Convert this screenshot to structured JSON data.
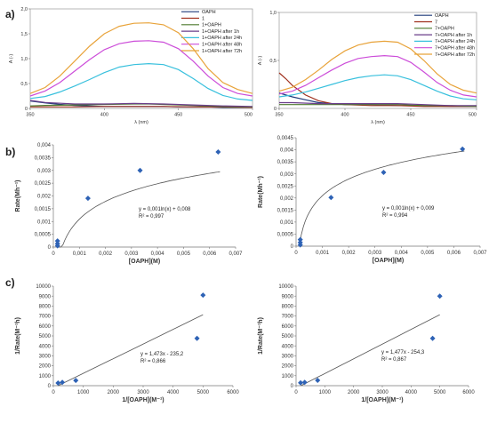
{
  "panel_labels": [
    "a)",
    "b)",
    "c)"
  ],
  "chart_data": [
    {
      "type": "line",
      "panel": "a)",
      "xlabel": "λ (nm)",
      "ylabel": "A (-)",
      "xlim": [
        350,
        500
      ],
      "ylim": [
        0,
        2.0
      ],
      "x_ticks": [
        "350",
        "400",
        "450",
        "500"
      ],
      "y_ticks": [
        "0",
        "0,5",
        "1,0",
        "1,5",
        "2,0"
      ],
      "grid": false,
      "legend_position": "top-right",
      "series": [
        {
          "name": "OAPH",
          "color": "#1f3a7a",
          "points": [
            [
              350,
              0.15
            ],
            [
              360,
              0.11
            ],
            [
              370,
              0.08
            ],
            [
              380,
              0.06
            ],
            [
              390,
              0.05
            ],
            [
              400,
              0.04
            ],
            [
              410,
              0.04
            ],
            [
              420,
              0.04
            ],
            [
              430,
              0.04
            ],
            [
              440,
              0.04
            ],
            [
              450,
              0.03
            ],
            [
              460,
              0.03
            ],
            [
              470,
              0.03
            ],
            [
              480,
              0.02
            ],
            [
              490,
              0.02
            ],
            [
              500,
              0.02
            ]
          ]
        },
        {
          "name": "1",
          "color": "#a0301e",
          "points": [
            [
              350,
              0.03
            ],
            [
              360,
              0.03
            ],
            [
              380,
              0.03
            ],
            [
              400,
              0.04
            ],
            [
              420,
              0.04
            ],
            [
              440,
              0.04
            ],
            [
              460,
              0.03
            ],
            [
              480,
              0.03
            ],
            [
              500,
              0.02
            ]
          ]
        },
        {
          "name": "1+OAPH",
          "color": "#4d7a2e",
          "points": [
            [
              350,
              0.05
            ],
            [
              360,
              0.06
            ],
            [
              380,
              0.07
            ],
            [
              400,
              0.08
            ],
            [
              420,
              0.09
            ],
            [
              430,
              0.09
            ],
            [
              440,
              0.08
            ],
            [
              460,
              0.06
            ],
            [
              480,
              0.04
            ],
            [
              500,
              0.03
            ]
          ]
        },
        {
          "name": "1+OAPH after 1h",
          "color": "#6a3d8a",
          "points": [
            [
              350,
              0.16
            ],
            [
              360,
              0.12
            ],
            [
              380,
              0.09
            ],
            [
              400,
              0.09
            ],
            [
              420,
              0.1
            ],
            [
              440,
              0.09
            ],
            [
              460,
              0.07
            ],
            [
              480,
              0.05
            ],
            [
              500,
              0.04
            ]
          ]
        },
        {
          "name": "1+OAPH after 24h",
          "color": "#38c0dd",
          "points": [
            [
              350,
              0.2
            ],
            [
              360,
              0.24
            ],
            [
              370,
              0.33
            ],
            [
              380,
              0.45
            ],
            [
              390,
              0.58
            ],
            [
              400,
              0.72
            ],
            [
              410,
              0.83
            ],
            [
              420,
              0.88
            ],
            [
              430,
              0.9
            ],
            [
              440,
              0.88
            ],
            [
              450,
              0.78
            ],
            [
              460,
              0.6
            ],
            [
              470,
              0.4
            ],
            [
              480,
              0.26
            ],
            [
              490,
              0.19
            ],
            [
              500,
              0.16
            ]
          ]
        },
        {
          "name": "1+OAPH after 48h",
          "color": "#cc4dd9",
          "points": [
            [
              350,
              0.25
            ],
            [
              360,
              0.35
            ],
            [
              370,
              0.52
            ],
            [
              380,
              0.75
            ],
            [
              390,
              0.98
            ],
            [
              400,
              1.18
            ],
            [
              410,
              1.3
            ],
            [
              420,
              1.35
            ],
            [
              430,
              1.36
            ],
            [
              440,
              1.33
            ],
            [
              450,
              1.2
            ],
            [
              460,
              0.95
            ],
            [
              470,
              0.65
            ],
            [
              480,
              0.42
            ],
            [
              490,
              0.3
            ],
            [
              500,
              0.25
            ]
          ]
        },
        {
          "name": "1+OAPH after 72h",
          "color": "#e8a33a",
          "points": [
            [
              350,
              0.3
            ],
            [
              360,
              0.42
            ],
            [
              370,
              0.65
            ],
            [
              380,
              0.95
            ],
            [
              390,
              1.25
            ],
            [
              400,
              1.5
            ],
            [
              410,
              1.65
            ],
            [
              420,
              1.71
            ],
            [
              430,
              1.72
            ],
            [
              440,
              1.68
            ],
            [
              450,
              1.52
            ],
            [
              460,
              1.2
            ],
            [
              470,
              0.8
            ],
            [
              480,
              0.52
            ],
            [
              490,
              0.38
            ],
            [
              500,
              0.3
            ]
          ]
        }
      ]
    },
    {
      "type": "line",
      "panel": "a)",
      "xlabel": "λ (nm)",
      "ylabel": "A (-)",
      "xlim": [
        350,
        500
      ],
      "ylim": [
        0,
        1.0
      ],
      "x_ticks": [
        "350",
        "400",
        "450",
        "500"
      ],
      "y_ticks": [
        "0",
        "0,5",
        "1,0"
      ],
      "grid": false,
      "legend_position": "top-right",
      "series": [
        {
          "name": "OAPH",
          "color": "#1f3a7a",
          "points": [
            [
              350,
              0.16
            ],
            [
              360,
              0.12
            ],
            [
              370,
              0.09
            ],
            [
              380,
              0.06
            ],
            [
              390,
              0.05
            ],
            [
              400,
              0.04
            ],
            [
              420,
              0.04
            ],
            [
              440,
              0.03
            ],
            [
              460,
              0.03
            ],
            [
              480,
              0.02
            ],
            [
              500,
              0.02
            ]
          ]
        },
        {
          "name": "7",
          "color": "#a0301e",
          "points": [
            [
              350,
              0.37
            ],
            [
              355,
              0.31
            ],
            [
              360,
              0.24
            ],
            [
              370,
              0.14
            ],
            [
              380,
              0.08
            ],
            [
              390,
              0.05
            ],
            [
              400,
              0.04
            ],
            [
              420,
              0.03
            ],
            [
              440,
              0.03
            ],
            [
              460,
              0.02
            ],
            [
              480,
              0.02
            ],
            [
              500,
              0.02
            ]
          ]
        },
        {
          "name": "7+OAPH",
          "color": "#4d7a2e",
          "points": [
            [
              350,
              0.04
            ],
            [
              360,
              0.04
            ],
            [
              380,
              0.04
            ],
            [
              400,
              0.04
            ],
            [
              420,
              0.04
            ],
            [
              440,
              0.04
            ],
            [
              460,
              0.03
            ],
            [
              480,
              0.03
            ],
            [
              500,
              0.02
            ]
          ]
        },
        {
          "name": "7+OAPH after 1h",
          "color": "#6a3d8a",
          "points": [
            [
              350,
              0.06
            ],
            [
              360,
              0.06
            ],
            [
              380,
              0.05
            ],
            [
              400,
              0.05
            ],
            [
              420,
              0.05
            ],
            [
              440,
              0.05
            ],
            [
              460,
              0.04
            ],
            [
              480,
              0.03
            ],
            [
              500,
              0.03
            ]
          ]
        },
        {
          "name": "7+OAPH after 24h",
          "color": "#38c0dd",
          "points": [
            [
              350,
              0.12
            ],
            [
              360,
              0.14
            ],
            [
              370,
              0.17
            ],
            [
              380,
              0.21
            ],
            [
              390,
              0.25
            ],
            [
              400,
              0.29
            ],
            [
              410,
              0.32
            ],
            [
              420,
              0.34
            ],
            [
              430,
              0.35
            ],
            [
              440,
              0.34
            ],
            [
              450,
              0.3
            ],
            [
              460,
              0.24
            ],
            [
              470,
              0.18
            ],
            [
              480,
              0.13
            ],
            [
              490,
              0.1
            ],
            [
              500,
              0.09
            ]
          ]
        },
        {
          "name": "7+OAPH after 48h",
          "color": "#cc4dd9",
          "points": [
            [
              350,
              0.15
            ],
            [
              360,
              0.18
            ],
            [
              370,
              0.24
            ],
            [
              380,
              0.32
            ],
            [
              390,
              0.4
            ],
            [
              400,
              0.47
            ],
            [
              410,
              0.52
            ],
            [
              420,
              0.54
            ],
            [
              430,
              0.55
            ],
            [
              440,
              0.54
            ],
            [
              450,
              0.48
            ],
            [
              460,
              0.38
            ],
            [
              470,
              0.27
            ],
            [
              480,
              0.19
            ],
            [
              490,
              0.14
            ],
            [
              500,
              0.12
            ]
          ]
        },
        {
          "name": "7+OAPH after 72h",
          "color": "#e8a33a",
          "points": [
            [
              350,
              0.18
            ],
            [
              360,
              0.22
            ],
            [
              370,
              0.3
            ],
            [
              380,
              0.4
            ],
            [
              390,
              0.51
            ],
            [
              400,
              0.6
            ],
            [
              410,
              0.66
            ],
            [
              420,
              0.69
            ],
            [
              430,
              0.7
            ],
            [
              440,
              0.69
            ],
            [
              450,
              0.62
            ],
            [
              460,
              0.5
            ],
            [
              470,
              0.36
            ],
            [
              480,
              0.25
            ],
            [
              490,
              0.19
            ],
            [
              500,
              0.16
            ]
          ]
        }
      ]
    },
    {
      "type": "scatter",
      "panel": "b)",
      "xlabel": "[OAPH](M)",
      "ylabel": "Rate(Mh⁻¹)",
      "xlim": [
        0,
        0.007
      ],
      "ylim": [
        0,
        0.004
      ],
      "x_ticks": [
        "0",
        "0,001",
        "0,002",
        "0,003",
        "0,004",
        "0,005",
        "0,006",
        "0,007"
      ],
      "y_ticks": [
        "0",
        "0,0005",
        "0,001",
        "0,0015",
        "0,002",
        "0,0025",
        "0,003",
        "0,0035",
        "0,004"
      ],
      "grid": false,
      "points": [
        [
          0.00016,
          5e-05
        ],
        [
          0.00016,
          0.00013
        ],
        [
          0.00016,
          0.00024
        ],
        [
          0.00133,
          0.00191
        ],
        [
          0.00333,
          0.003
        ],
        [
          0.00633,
          0.00372
        ]
      ],
      "fit": {
        "type": "log",
        "a": 0.001,
        "b": 0.008,
        "x_range": [
          0.00013,
          0.0064
        ]
      },
      "annotations": [
        "y = 0,001ln(x) + 0,008",
        "R² = 0,997"
      ]
    },
    {
      "type": "scatter",
      "panel": "b)",
      "xlabel": "[OAPH](M)",
      "ylabel": "Rate(Mh⁻¹)",
      "xlim": [
        0,
        0.007
      ],
      "ylim": [
        0,
        0.0045
      ],
      "x_ticks": [
        "0",
        "0,001",
        "0,002",
        "0,003",
        "0,004",
        "0,005",
        "0,006",
        "0,007"
      ],
      "y_ticks": [
        "0",
        "0,0005",
        "0,001",
        "0,0015",
        "0,002",
        "0,0025",
        "0,003",
        "0,0035",
        "0,004",
        "0,0045"
      ],
      "grid": false,
      "points": [
        [
          0.00016,
          5e-05
        ],
        [
          0.00016,
          0.00015
        ],
        [
          0.00016,
          0.00027
        ],
        [
          0.00133,
          0.00202
        ],
        [
          0.00333,
          0.00306
        ],
        [
          0.00633,
          0.00403
        ]
      ],
      "fit": {
        "type": "log",
        "a": 0.001,
        "b": 0.009,
        "x_range": [
          0.00012,
          0.0064
        ]
      },
      "annotations": [
        "y = 0,001ln(x) + 0,009",
        "R² = 0,994"
      ]
    },
    {
      "type": "scatter",
      "panel": "c)",
      "xlabel": "1/[OAPH](M⁻¹)",
      "ylabel": "1/Rate(M⁻¹h)",
      "xlim": [
        0,
        6000
      ],
      "ylim": [
        0,
        10000
      ],
      "x_ticks": [
        "0",
        "1000",
        "2000",
        "3000",
        "4000",
        "5000",
        "6000"
      ],
      "y_ticks": [
        "0",
        "1000",
        "2000",
        "3000",
        "4000",
        "5000",
        "6000",
        "7000",
        "8000",
        "9000",
        "10000"
      ],
      "grid": false,
      "points": [
        [
          158,
          270
        ],
        [
          300,
          330
        ],
        [
          750,
          520
        ],
        [
          4800,
          4750
        ],
        [
          5000,
          9100
        ]
      ],
      "fit": {
        "type": "linear",
        "slope": 1.473,
        "intercept": -235.2,
        "x_range": [
          160,
          5000
        ]
      },
      "annotations": [
        "y = 1,473x - 235,2",
        "R² = 0,866"
      ]
    },
    {
      "type": "scatter",
      "panel": "c)",
      "xlabel": "1/[OAPH](M⁻¹)",
      "ylabel": "1/Rate(M⁻¹h)",
      "xlim": [
        0,
        6000
      ],
      "ylim": [
        0,
        10000
      ],
      "x_ticks": [
        "0",
        "1000",
        "2000",
        "3000",
        "4000",
        "5000",
        "6000"
      ],
      "y_ticks": [
        "0",
        "1000",
        "2000",
        "3000",
        "4000",
        "5000",
        "6000",
        "7000",
        "8000",
        "9000",
        "10000"
      ],
      "grid": false,
      "points": [
        [
          158,
          290
        ],
        [
          300,
          330
        ],
        [
          750,
          540
        ],
        [
          4750,
          4750
        ],
        [
          5000,
          9000
        ]
      ],
      "fit": {
        "type": "linear",
        "slope": 1.477,
        "intercept": -254.3,
        "x_range": [
          170,
          5000
        ]
      },
      "annotations": [
        "y = 1,477x - 254,3",
        "R² = 0,867"
      ]
    }
  ]
}
